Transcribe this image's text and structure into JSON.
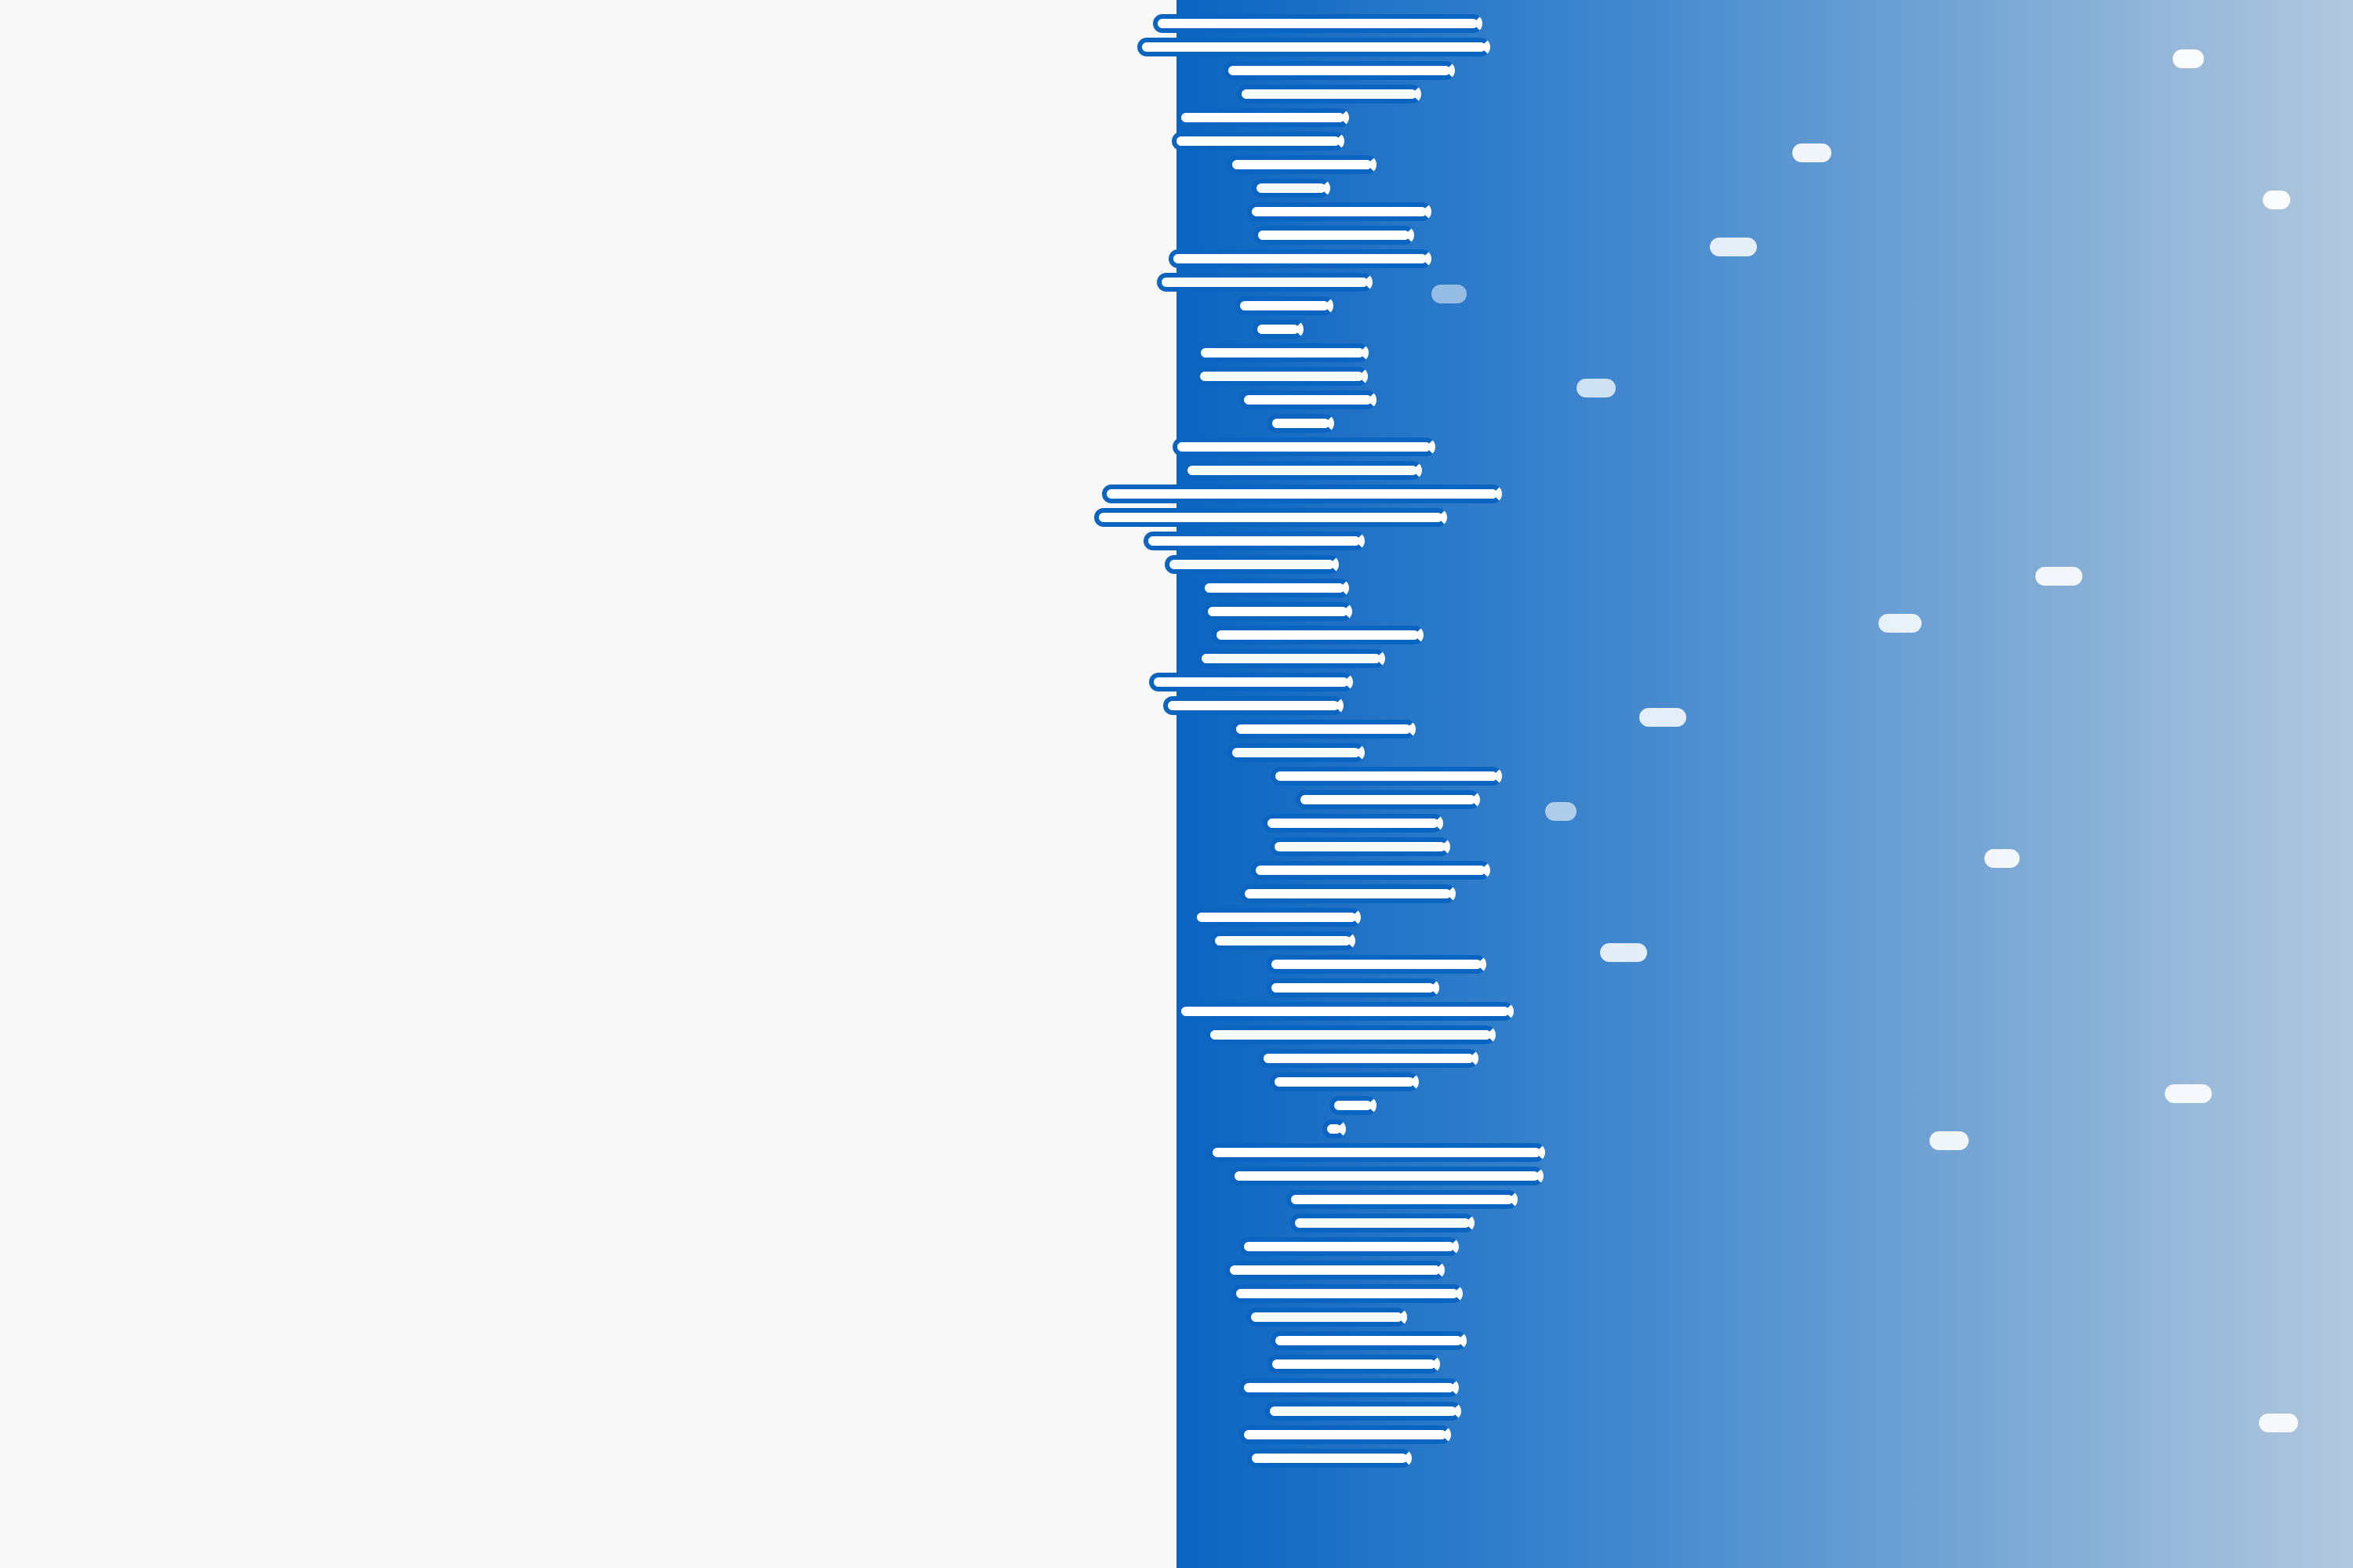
{
  "colors": {
    "background": "#f8f8f8",
    "gradient_start": "#0a64c0",
    "gradient_mid": "#3480cc",
    "gradient_end": "#b2c8de",
    "line_fill": "#ffffff",
    "line_edge": "#0a64c0"
  }
}
